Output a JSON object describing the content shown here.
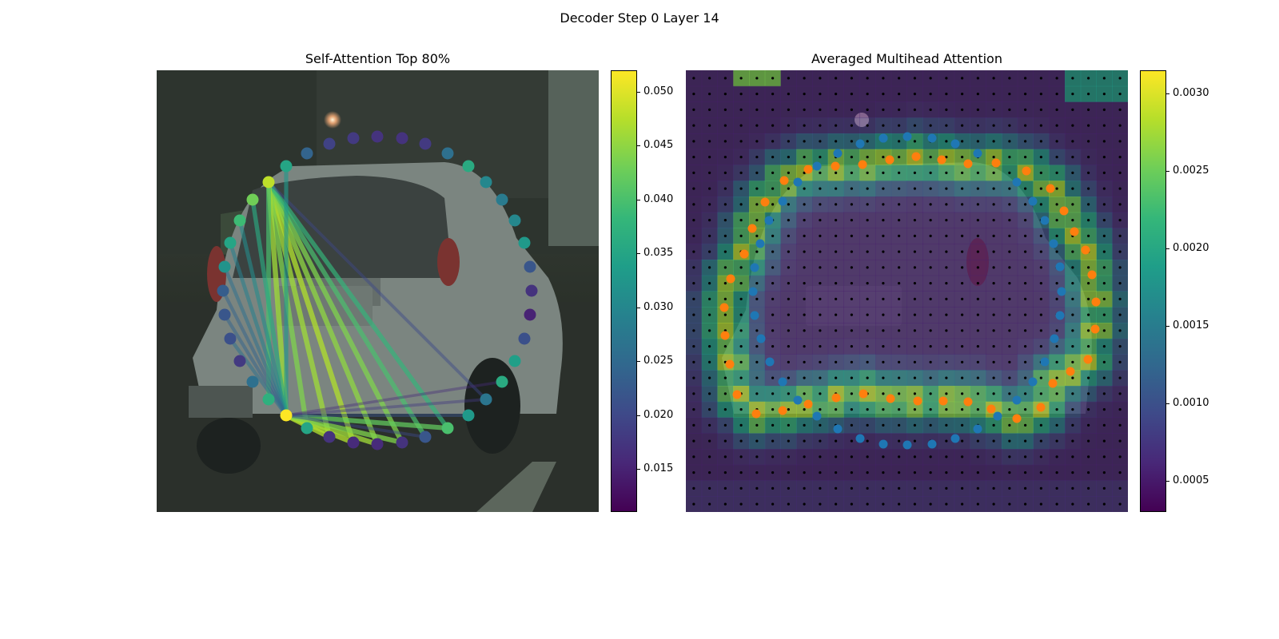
{
  "suptitle": "Decoder Step 0 Layer 14",
  "colormap": [
    "#440154",
    "#482878",
    "#3e4a89",
    "#31688e",
    "#26828e",
    "#1f9e89",
    "#35b779",
    "#6ece58",
    "#b5de2b",
    "#fde725"
  ],
  "chart_data": [
    {
      "type": "scatter",
      "title": "Self-Attention Top 80%",
      "description_kind": "attention graph over image",
      "point_value_range": [
        0.011,
        0.052
      ],
      "colorbar": {
        "range": [
          0.011,
          0.052
        ],
        "ticks": [
          0.015,
          0.02,
          0.025,
          0.03,
          0.035,
          0.04,
          0.045,
          0.05
        ],
        "tick_labels": [
          "0.015",
          "0.020",
          "0.025",
          "0.030",
          "0.035",
          "0.040",
          "0.045",
          "0.050"
        ]
      },
      "points": [
        {
          "id": 0,
          "x": 358,
          "y": 520,
          "v": 0.052
        },
        {
          "id": 1,
          "x": 384,
          "y": 536,
          "v": 0.035
        },
        {
          "id": 2,
          "x": 412,
          "y": 547,
          "v": 0.017
        },
        {
          "id": 3,
          "x": 442,
          "y": 554,
          "v": 0.016
        },
        {
          "id": 4,
          "x": 472,
          "y": 556,
          "v": 0.016
        },
        {
          "id": 5,
          "x": 503,
          "y": 554,
          "v": 0.017
        },
        {
          "id": 6,
          "x": 532,
          "y": 547,
          "v": 0.022
        },
        {
          "id": 7,
          "x": 560,
          "y": 536,
          "v": 0.04
        },
        {
          "id": 8,
          "x": 586,
          "y": 520,
          "v": 0.033
        },
        {
          "id": 9,
          "x": 608,
          "y": 500,
          "v": 0.027
        },
        {
          "id": 10,
          "x": 628,
          "y": 478,
          "v": 0.036
        },
        {
          "id": 11,
          "x": 644,
          "y": 452,
          "v": 0.034
        },
        {
          "id": 12,
          "x": 656,
          "y": 424,
          "v": 0.021
        },
        {
          "id": 13,
          "x": 663,
          "y": 394,
          "v": 0.015
        },
        {
          "id": 14,
          "x": 665,
          "y": 364,
          "v": 0.017
        },
        {
          "id": 15,
          "x": 663,
          "y": 334,
          "v": 0.022
        },
        {
          "id": 16,
          "x": 656,
          "y": 304,
          "v": 0.033
        },
        {
          "id": 17,
          "x": 644,
          "y": 276,
          "v": 0.03
        },
        {
          "id": 18,
          "x": 628,
          "y": 250,
          "v": 0.028
        },
        {
          "id": 19,
          "x": 608,
          "y": 228,
          "v": 0.03
        },
        {
          "id": 20,
          "x": 586,
          "y": 208,
          "v": 0.036
        },
        {
          "id": 21,
          "x": 560,
          "y": 192,
          "v": 0.026
        },
        {
          "id": 22,
          "x": 532,
          "y": 180,
          "v": 0.018
        },
        {
          "id": 23,
          "x": 503,
          "y": 173,
          "v": 0.017
        },
        {
          "id": 24,
          "x": 472,
          "y": 171,
          "v": 0.017
        },
        {
          "id": 25,
          "x": 442,
          "y": 173,
          "v": 0.018
        },
        {
          "id": 26,
          "x": 412,
          "y": 180,
          "v": 0.019
        },
        {
          "id": 27,
          "x": 384,
          "y": 192,
          "v": 0.024
        },
        {
          "id": 28,
          "x": 358,
          "y": 208,
          "v": 0.035
        },
        {
          "id": 29,
          "x": 336,
          "y": 228,
          "v": 0.048
        },
        {
          "id": 30,
          "x": 316,
          "y": 250,
          "v": 0.043
        },
        {
          "id": 31,
          "x": 300,
          "y": 276,
          "v": 0.039
        },
        {
          "id": 32,
          "x": 288,
          "y": 304,
          "v": 0.035
        },
        {
          "id": 33,
          "x": 281,
          "y": 334,
          "v": 0.032
        },
        {
          "id": 34,
          "x": 279,
          "y": 364,
          "v": 0.023
        },
        {
          "id": 35,
          "x": 281,
          "y": 394,
          "v": 0.022
        },
        {
          "id": 36,
          "x": 288,
          "y": 424,
          "v": 0.021
        },
        {
          "id": 37,
          "x": 300,
          "y": 452,
          "v": 0.018
        },
        {
          "id": 38,
          "x": 316,
          "y": 478,
          "v": 0.026
        },
        {
          "id": 39,
          "x": 336,
          "y": 500,
          "v": 0.037
        }
      ],
      "edges": [
        {
          "a": 29,
          "b": 2,
          "v": 0.046
        },
        {
          "a": 29,
          "b": 3,
          "v": 0.047
        },
        {
          "a": 29,
          "b": 4,
          "v": 0.045
        },
        {
          "a": 29,
          "b": 5,
          "v": 0.044
        },
        {
          "a": 29,
          "b": 1,
          "v": 0.044
        },
        {
          "a": 29,
          "b": 6,
          "v": 0.04
        },
        {
          "a": 29,
          "b": 7,
          "v": 0.038
        },
        {
          "a": 29,
          "b": 0,
          "v": 0.046
        },
        {
          "a": 29,
          "b": 39,
          "v": 0.04
        },
        {
          "a": 29,
          "b": 9,
          "v": 0.02
        },
        {
          "a": 30,
          "b": 0,
          "v": 0.036
        },
        {
          "a": 31,
          "b": 0,
          "v": 0.031
        },
        {
          "a": 32,
          "b": 0,
          "v": 0.029
        },
        {
          "a": 33,
          "b": 0,
          "v": 0.026
        },
        {
          "a": 34,
          "b": 0,
          "v": 0.024
        },
        {
          "a": 35,
          "b": 0,
          "v": 0.024
        },
        {
          "a": 36,
          "b": 0,
          "v": 0.026
        },
        {
          "a": 28,
          "b": 0,
          "v": 0.033
        },
        {
          "a": 0,
          "b": 2,
          "v": 0.047
        },
        {
          "a": 0,
          "b": 3,
          "v": 0.047
        },
        {
          "a": 0,
          "b": 4,
          "v": 0.046
        },
        {
          "a": 0,
          "b": 5,
          "v": 0.044
        },
        {
          "a": 0,
          "b": 7,
          "v": 0.042
        },
        {
          "a": 0,
          "b": 8,
          "v": 0.022
        },
        {
          "a": 0,
          "b": 9,
          "v": 0.018
        },
        {
          "a": 0,
          "b": 10,
          "v": 0.016
        },
        {
          "a": 0,
          "b": 6,
          "v": 0.02
        }
      ]
    },
    {
      "type": "heatmap",
      "title": "Averaged Multihead Attention",
      "grid": [
        28,
        28
      ],
      "colorbar": {
        "range": [
          0.0003,
          0.00315
        ],
        "ticks": [
          0.0005,
          0.001,
          0.0015,
          0.002,
          0.0025,
          0.003
        ],
        "tick_labels": [
          "0.0005",
          "0.0010",
          "0.0015",
          "0.0020",
          "0.0025",
          "0.0030"
        ]
      },
      "series": [
        {
          "name": "blue points",
          "color": "#1f77b4",
          "points": [
            [
              1048,
              192
            ],
            [
              1076,
              180
            ],
            [
              1105,
              173
            ],
            [
              1135,
              171
            ],
            [
              1166,
              173
            ],
            [
              1195,
              180
            ],
            [
              1223,
              192
            ],
            [
              1272,
              228
            ],
            [
              1292,
              252
            ],
            [
              1307,
              276
            ],
            [
              1318,
              305
            ],
            [
              1326,
              334
            ],
            [
              1328,
              365
            ],
            [
              1326,
              395
            ],
            [
              1319,
              424
            ],
            [
              1307,
              453
            ],
            [
              1292,
              478
            ],
            [
              1272,
              501
            ],
            [
              1248,
              521
            ],
            [
              1223,
              537
            ],
            [
              1195,
              549
            ],
            [
              1166,
              556
            ],
            [
              1135,
              557
            ],
            [
              1105,
              556
            ],
            [
              1076,
              549
            ],
            [
              1048,
              537
            ],
            [
              1022,
              521
            ],
            [
              998,
              501
            ],
            [
              979,
              478
            ],
            [
              963,
              453
            ],
            [
              952,
              424
            ],
            [
              944,
              395
            ],
            [
              942,
              365
            ],
            [
              944,
              335
            ],
            [
              951,
              305
            ],
            [
              962,
              276
            ],
            [
              979,
              252
            ],
            [
              998,
              228
            ],
            [
              1022,
              208
            ],
            [
              1105,
              173
            ]
          ]
        },
        {
          "name": "orange points",
          "color": "#ff7f0e",
          "points": [
            [
              1011,
              212
            ],
            [
              1045,
              208
            ],
            [
              1079,
              206
            ],
            [
              1113,
              200
            ],
            [
              1146,
              196
            ],
            [
              1178,
              200
            ],
            [
              1211,
              205
            ],
            [
              1246,
              204
            ],
            [
              1284,
              214
            ],
            [
              1314,
              236
            ],
            [
              1331,
              264
            ],
            [
              1344,
              290
            ],
            [
              1358,
              313
            ],
            [
              1366,
              344
            ],
            [
              1371,
              378
            ],
            [
              1370,
              412
            ],
            [
              1361,
              450
            ],
            [
              1339,
              465
            ],
            [
              1317,
              480
            ],
            [
              1302,
              510
            ],
            [
              1272,
              524
            ],
            [
              1240,
              512
            ],
            [
              1211,
              503
            ],
            [
              1180,
              502
            ],
            [
              1148,
              502
            ],
            [
              1114,
              499
            ],
            [
              1080,
              493
            ],
            [
              1046,
              498
            ],
            [
              1011,
              506
            ],
            [
              979,
              514
            ],
            [
              946,
              518
            ],
            [
              922,
              494
            ],
            [
              913,
              456
            ],
            [
              907,
              420
            ],
            [
              906,
              385
            ],
            [
              914,
              349
            ],
            [
              931,
              318
            ],
            [
              941,
              286
            ],
            [
              957,
              253
            ],
            [
              981,
              226
            ]
          ]
        }
      ]
    }
  ]
}
